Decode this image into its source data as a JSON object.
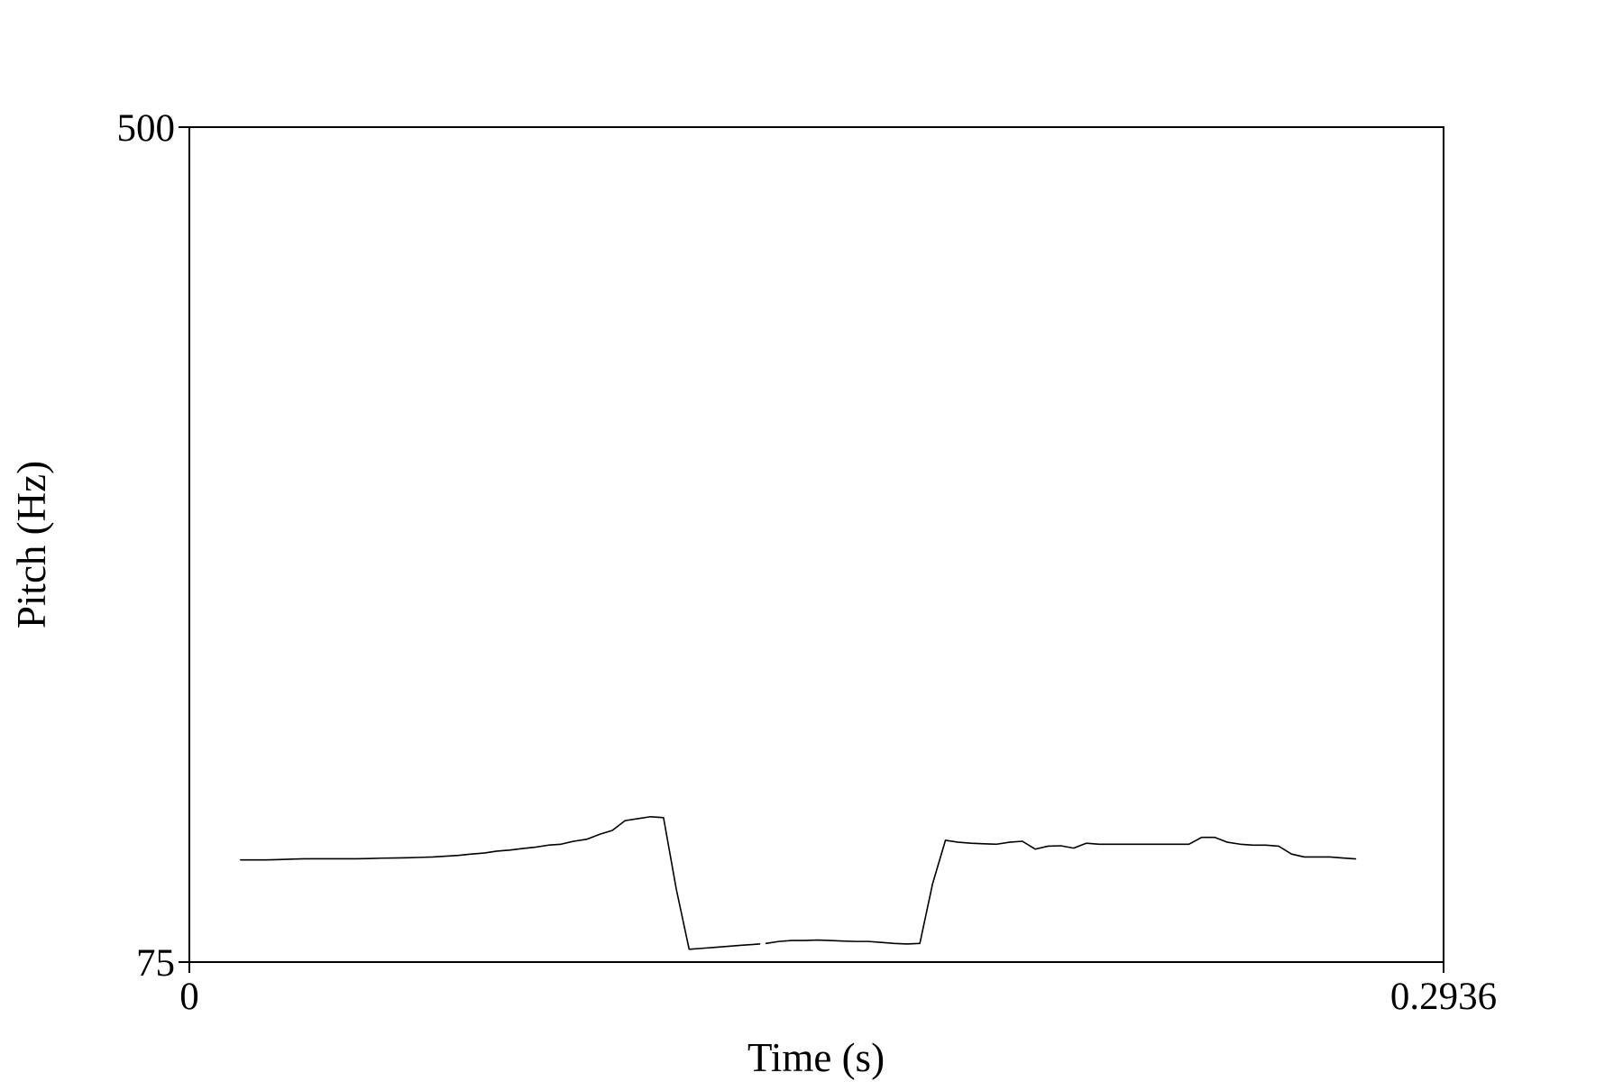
{
  "chart_data": {
    "type": "line",
    "xlabel": "Time (s)",
    "ylabel": "Pitch (Hz)",
    "xlim": [
      0,
      0.2936
    ],
    "ylim": [
      75,
      500
    ],
    "x_ticks": [
      "0",
      "0.2936"
    ],
    "y_ticks": [
      "500",
      "75"
    ],
    "grid": false,
    "legend": "none",
    "line_color": "#000000",
    "series": [
      {
        "segments": [
          {
            "x": [
              0.012,
              0.015,
              0.018,
              0.021,
              0.024,
              0.027,
              0.03,
              0.033,
              0.036,
              0.039,
              0.042,
              0.045,
              0.048,
              0.051,
              0.054,
              0.057,
              0.06,
              0.063,
              0.066,
              0.069,
              0.072,
              0.075,
              0.078,
              0.081,
              0.084,
              0.087,
              0.09,
              0.093,
              0.096,
              0.099,
              0.102,
              0.105,
              0.108,
              0.111,
              0.114,
              0.117,
              0.12,
              0.123,
              0.126,
              0.129,
              0.132,
              0.1335
            ],
            "y": [
              127.0,
              127.0,
              127.0,
              127.2,
              127.4,
              127.6,
              127.6,
              127.6,
              127.6,
              127.6,
              127.7,
              127.9,
              128.0,
              128.1,
              128.3,
              128.5,
              128.9,
              129.3,
              130.0,
              130.5,
              131.5,
              132.0,
              132.8,
              133.5,
              134.5,
              135.0,
              136.5,
              137.5,
              140.0,
              142.0,
              147.0,
              148.0,
              149.0,
              148.5,
              112.0,
              81.5,
              82.0,
              82.5,
              83.0,
              83.5,
              84.0,
              84.2
            ]
          },
          {
            "x": [
              0.135,
              0.138,
              0.141,
              0.144,
              0.147,
              0.15,
              0.153,
              0.156,
              0.159,
              0.162,
              0.165,
              0.168,
              0.171,
              0.174,
              0.177,
              0.18,
              0.183,
              0.186,
              0.189,
              0.192,
              0.195,
              0.198,
              0.201,
              0.204,
              0.207,
              0.21,
              0.213,
              0.216,
              0.219,
              0.222,
              0.225,
              0.228,
              0.231,
              0.234,
              0.237,
              0.24,
              0.243,
              0.246,
              0.249,
              0.252,
              0.255,
              0.258,
              0.261,
              0.264,
              0.267,
              0.27,
              0.273
            ],
            "y": [
              84.5,
              85.5,
              86.0,
              86.0,
              86.2,
              86.0,
              85.7,
              85.5,
              85.5,
              85.0,
              84.5,
              84.2,
              84.5,
              115.0,
              137.0,
              136.0,
              135.5,
              135.2,
              135.0,
              136.0,
              136.5,
              132.5,
              134.0,
              134.2,
              133.0,
              135.5,
              135.0,
              135.0,
              135.0,
              135.0,
              135.0,
              135.0,
              135.0,
              135.0,
              138.5,
              138.5,
              136.0,
              135.0,
              134.5,
              134.5,
              134.0,
              130.0,
              128.5,
              128.5,
              128.5,
              128.0,
              127.5
            ]
          }
        ]
      }
    ]
  }
}
